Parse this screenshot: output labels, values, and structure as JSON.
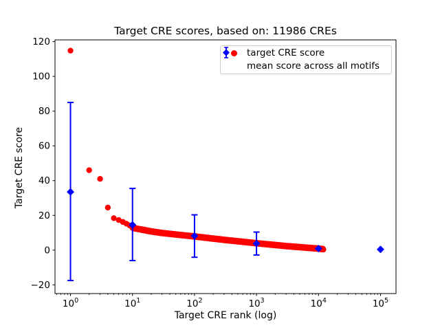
{
  "chart_data": {
    "type": "scatter",
    "title": "Target CRE scores, based on: 11986 CREs",
    "xlabel": "Target CRE rank (log)",
    "ylabel": "Target CRE score",
    "x_scale": "log",
    "grid": false,
    "xlim_log10": [
      -0.25,
      5.25
    ],
    "ylim": [
      -25,
      121
    ],
    "x_tick_exponents": [
      0,
      1,
      2,
      3,
      4,
      5
    ],
    "y_ticks": [
      -20,
      0,
      20,
      40,
      60,
      80,
      100,
      120
    ],
    "n_cres": 11986,
    "colors": {
      "target": "#ff0000",
      "mean": "#0000ff",
      "axes": "#000000",
      "legend_border": "#cccccc"
    },
    "legend": {
      "position": "upper right"
    },
    "series": [
      {
        "name": "target CRE score",
        "marker": "circle",
        "color": "#ff0000",
        "n_points": 11986,
        "head_points": [
          [
            1,
            114.8
          ],
          [
            2,
            46
          ],
          [
            3,
            41
          ],
          [
            4,
            24.5
          ],
          [
            5,
            18.4
          ],
          [
            6,
            17.3
          ],
          [
            7,
            16.2
          ],
          [
            8,
            15.2
          ],
          [
            9,
            14.2
          ]
        ],
        "band_anchors_log10rank_score": [
          [
            1.0,
            12.8
          ],
          [
            1.301,
            10.8
          ],
          [
            1.477,
            9.9
          ],
          [
            2.0,
            7.9
          ],
          [
            2.5,
            5.8
          ],
          [
            3.0,
            3.9
          ],
          [
            3.477,
            2.3
          ],
          [
            4.0,
            0.9
          ],
          [
            4.0786,
            0.6
          ]
        ],
        "last_rank": 11986
      },
      {
        "name": "mean score across all motifs",
        "marker": "diamond",
        "color": "#0000ff",
        "points": [
          {
            "x": 1,
            "mean": 33.5,
            "err_low": -17.5,
            "err_high": 85
          },
          {
            "x": 10,
            "mean": 14.5,
            "err_low": -6,
            "err_high": 35.5
          },
          {
            "x": 100,
            "mean": 8.2,
            "err_low": -4.1,
            "err_high": 20.3
          },
          {
            "x": 1000,
            "mean": 3.8,
            "err_low": -2.8,
            "err_high": 10.4
          },
          {
            "x": 10000,
            "mean": 0.9,
            "err_low": null,
            "err_high": null
          },
          {
            "x": 100000,
            "mean": 0.4,
            "err_low": null,
            "err_high": null
          }
        ]
      }
    ]
  }
}
